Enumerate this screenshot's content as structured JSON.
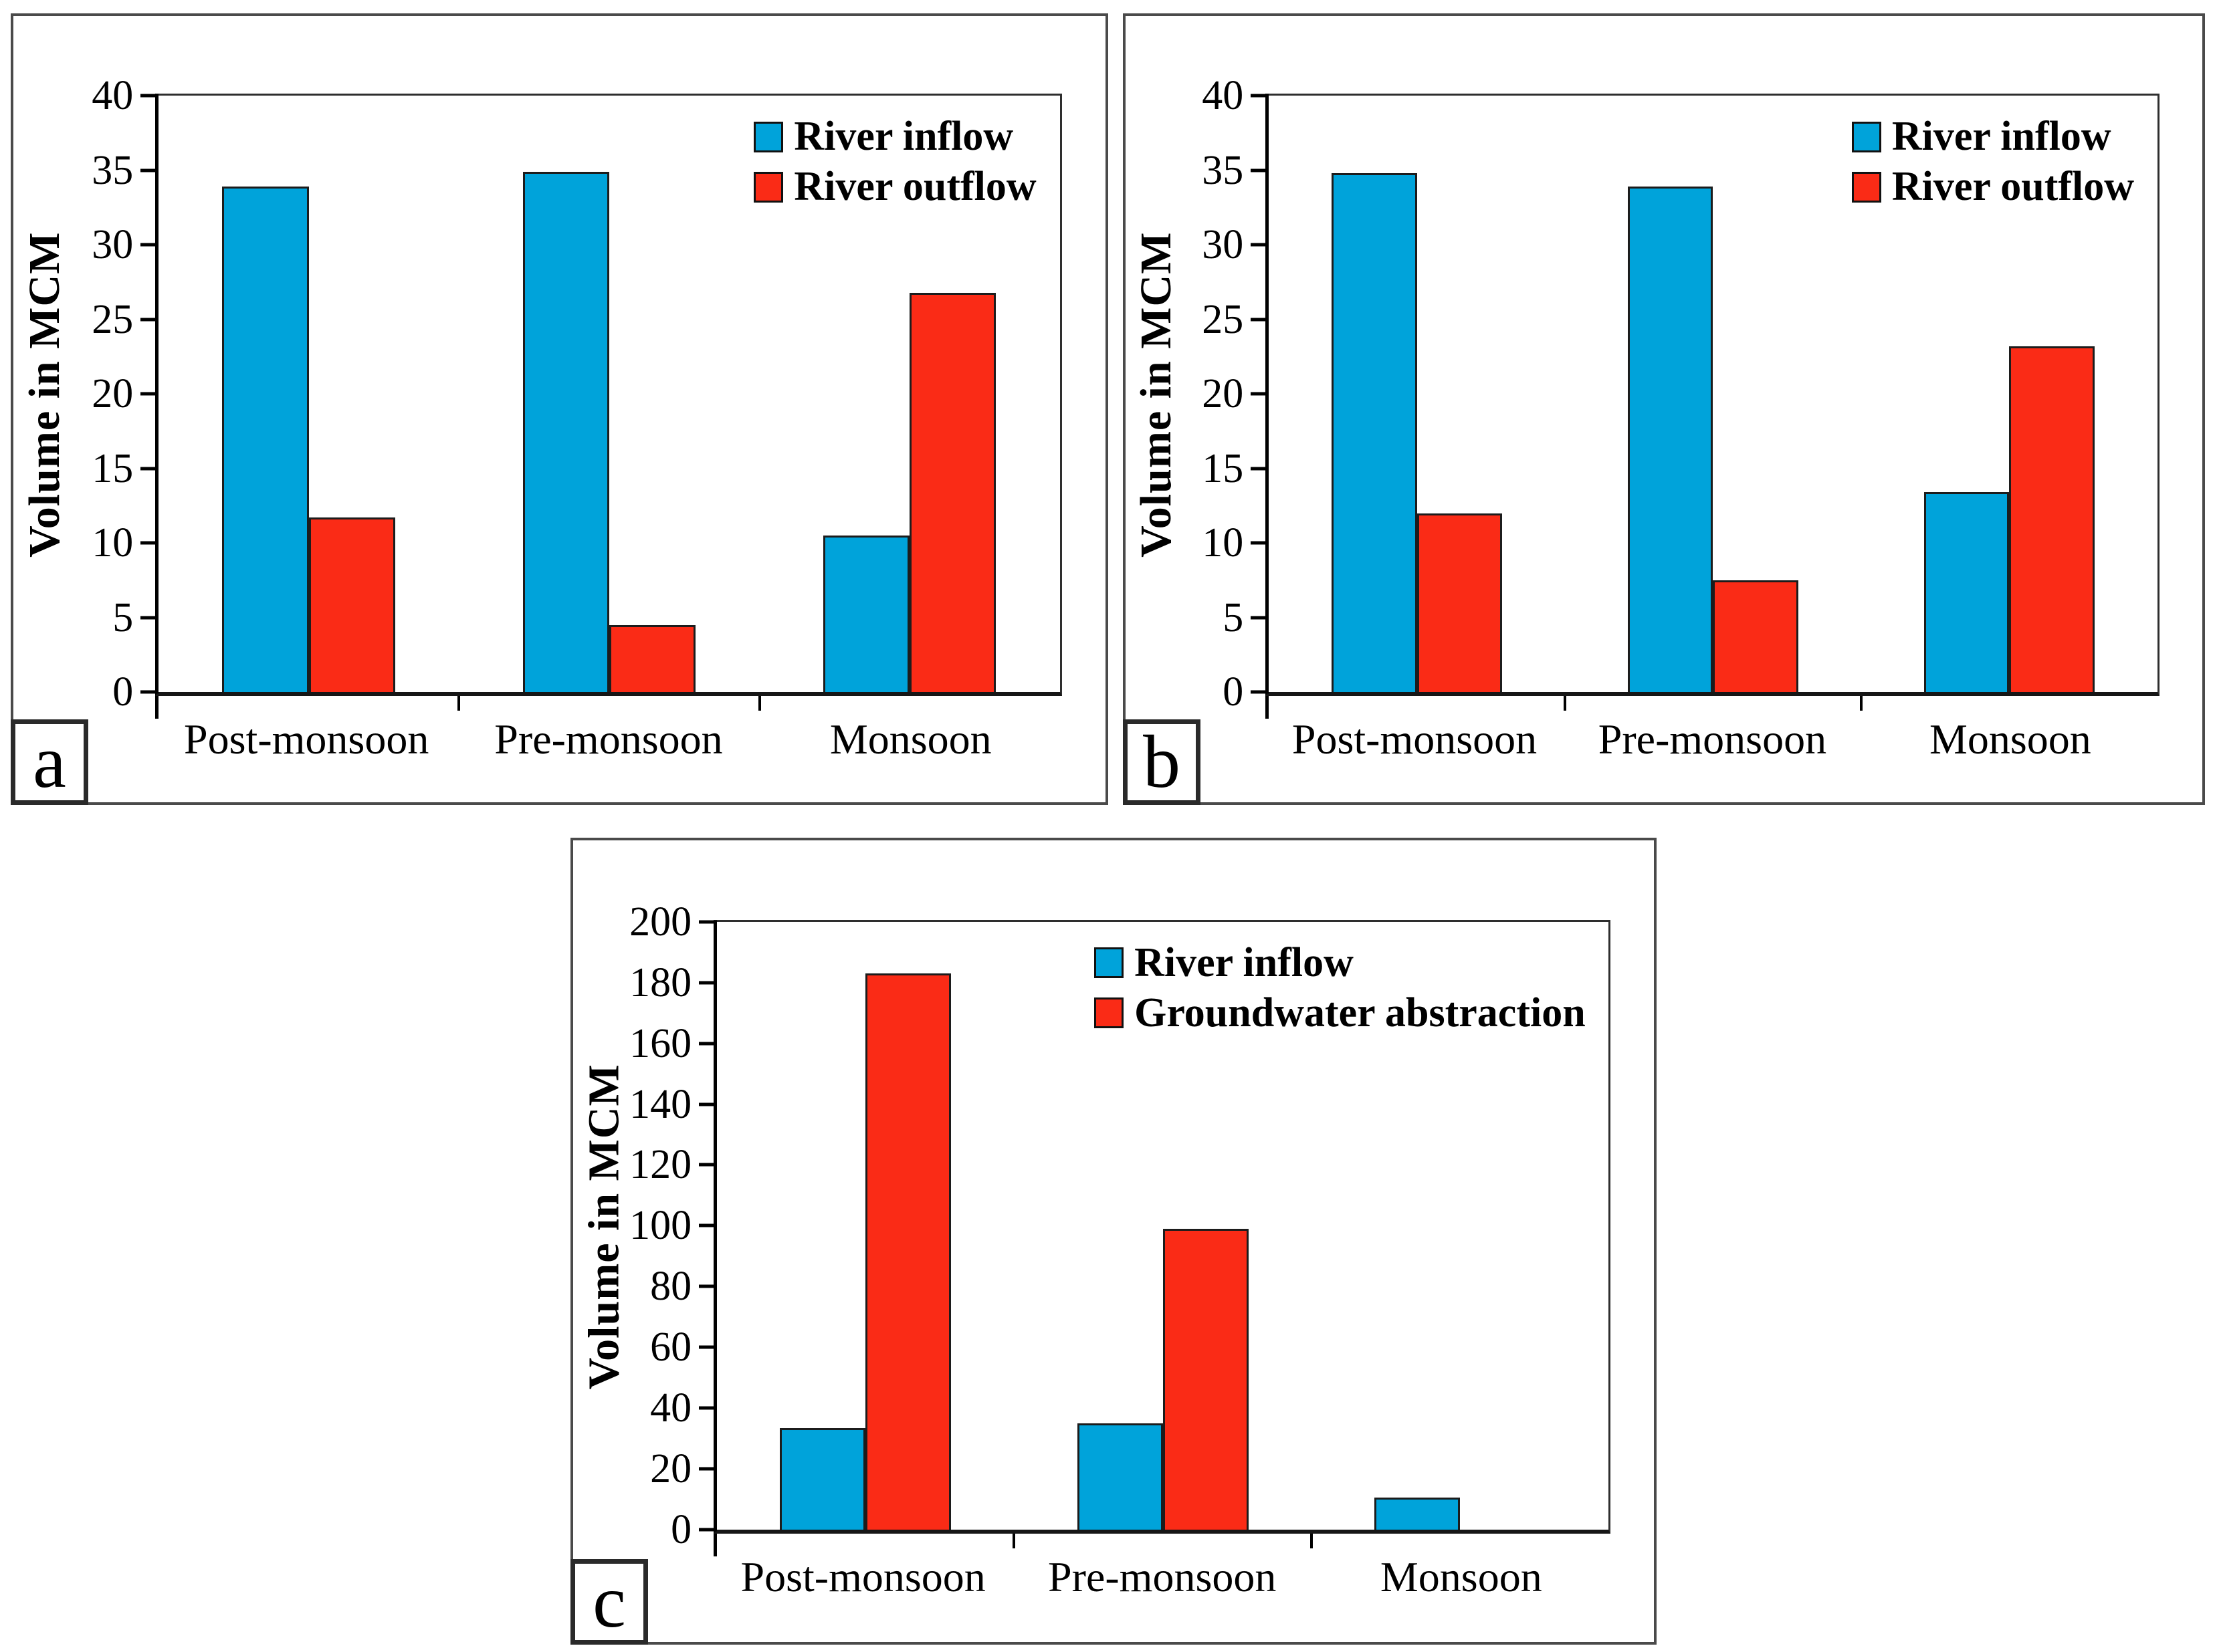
{
  "figure": {
    "background": "#ffffff",
    "series_colors": {
      "blue": "#00A3DA",
      "red": "#FA2B16"
    },
    "bar_border_color": "#1c1c1c"
  },
  "chart_data": [
    {
      "type": "bar",
      "panel_label": "a",
      "title": "",
      "ylabel": "Volume in MCM",
      "xlabel": "",
      "ylim": [
        0,
        40
      ],
      "ytick_step": 5,
      "grid": false,
      "legend_position": "top-right",
      "categories": [
        "Post-monsoon",
        "Pre-monsoon",
        "Monsoon"
      ],
      "series": [
        {
          "name": "River inflow",
          "color": "#00A3DA",
          "values": [
            33.9,
            34.9,
            10.5
          ]
        },
        {
          "name": "River outflow",
          "color": "#FA2B16",
          "values": [
            11.7,
            4.5,
            26.8
          ]
        }
      ]
    },
    {
      "type": "bar",
      "panel_label": "b",
      "title": "",
      "ylabel": "Volume in MCM",
      "xlabel": "",
      "ylim": [
        0,
        40
      ],
      "ytick_step": 5,
      "grid": false,
      "legend_position": "top-right",
      "categories": [
        "Post-monsoon",
        "Pre-monsoon",
        "Monsoon"
      ],
      "series": [
        {
          "name": "River inflow",
          "color": "#00A3DA",
          "values": [
            34.8,
            33.9,
            13.4
          ]
        },
        {
          "name": "River outflow",
          "color": "#FA2B16",
          "values": [
            12.0,
            7.5,
            23.2
          ]
        }
      ]
    },
    {
      "type": "bar",
      "panel_label": "c",
      "title": "",
      "ylabel": "Volume in MCM",
      "xlabel": "",
      "ylim": [
        0,
        200
      ],
      "ytick_step": 20,
      "grid": false,
      "legend_position": "top-right",
      "categories": [
        "Post-monsoon",
        "Pre-monsoon",
        "Monsoon"
      ],
      "series": [
        {
          "name": "River inflow",
          "color": "#00A3DA",
          "values": [
            33.5,
            35.0,
            10.5
          ]
        },
        {
          "name": "Groundwater abstraction",
          "color": "#FA2B16",
          "values": [
            183,
            99,
            0
          ]
        }
      ]
    }
  ]
}
